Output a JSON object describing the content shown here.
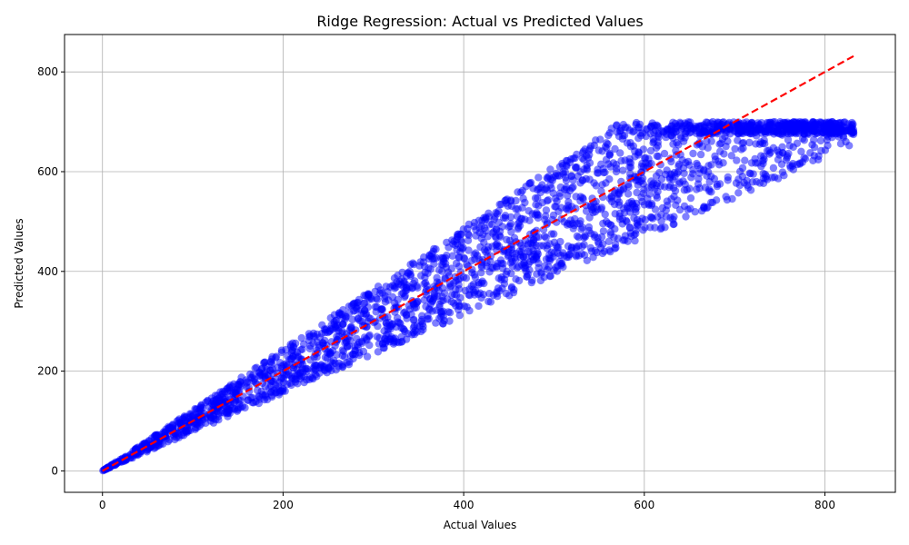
{
  "chart_data": {
    "type": "scatter",
    "title": "Ridge Regression: Actual vs Predicted Values",
    "xlabel": "Actual Values",
    "ylabel": "Predicted Values",
    "xlim": [
      -42,
      878
    ],
    "ylim": [
      -43,
      875
    ],
    "xticks": [
      0,
      200,
      400,
      600,
      800
    ],
    "yticks": [
      0,
      200,
      400,
      600,
      800
    ],
    "grid": true,
    "point_color": "#0000ff",
    "point_opacity": 0.5,
    "series": [
      {
        "type": "scatter",
        "band": {
          "x_range": [
            0,
            832
          ],
          "prediction_cap": 700,
          "lower_slope": 0.78,
          "upper_slope": 1.22
        }
      },
      {
        "type": "reference-line",
        "style": "dashed",
        "color": "#ff0000",
        "points": [
          [
            0,
            0
          ],
          [
            835,
            835
          ]
        ]
      }
    ]
  }
}
